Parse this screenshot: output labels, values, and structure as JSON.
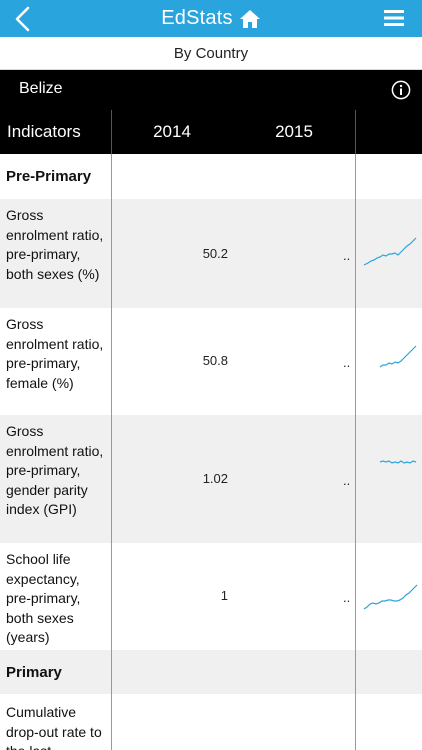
{
  "app": {
    "title": "EdStats",
    "subtitle": "By Country",
    "country": "Belize"
  },
  "colors": {
    "accent": "#2aa4dd",
    "bar": "#000000",
    "row_alt": "#f0f0f0",
    "sparkline": "#2aa4dd"
  },
  "icons": {
    "back": "chevron-left-icon",
    "home": "home-icon",
    "menu": "hamburger-menu-icon",
    "info": "info-icon"
  },
  "table": {
    "columns": [
      "Indicators",
      "2014",
      "2015"
    ],
    "rows": [
      {
        "type": "section",
        "label": "Pre-Primary"
      },
      {
        "type": "data",
        "label": "Gross enrolment ratio, pre-primary, both sexes (%)",
        "v2014": "50.2",
        "v2015": ".."
      },
      {
        "type": "data",
        "label": "Gross enrolment ratio, pre-primary, female (%)",
        "v2014": "50.8",
        "v2015": ".."
      },
      {
        "type": "data",
        "label": "Gross enrolment ratio, pre-primary, gender parity index (GPI)",
        "v2014": "1.02",
        "v2015": ".."
      },
      {
        "type": "data",
        "label": "School life expectancy, pre-primary, both sexes (years)",
        "v2014": "1",
        "v2015": ".."
      },
      {
        "type": "section",
        "label": "Primary"
      },
      {
        "type": "data",
        "label": "Cumulative drop-out rate to the last",
        "v2014": "",
        "v2015": ""
      }
    ]
  }
}
